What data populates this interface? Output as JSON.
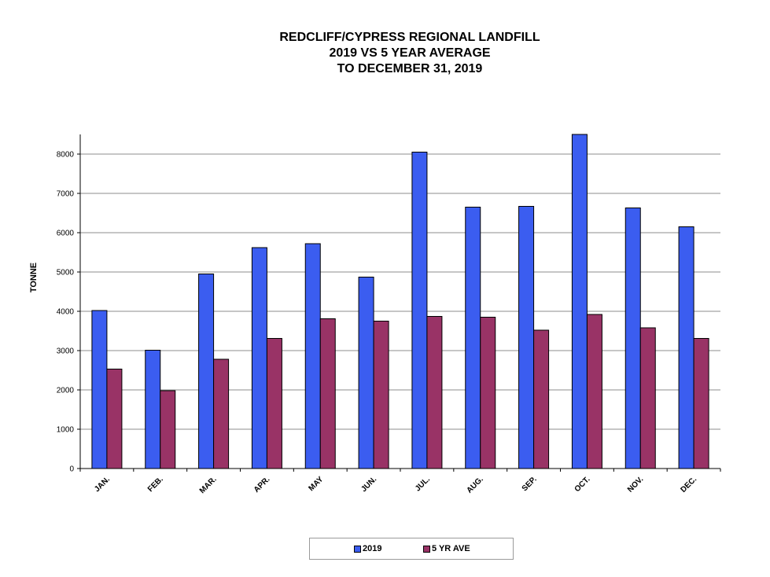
{
  "chart_data": {
    "type": "bar",
    "title": [
      "REDCLIFF/CYPRESS REGIONAL LANDFILL",
      "2019 VS 5 YEAR AVERAGE",
      "TO DECEMBER 31, 2019"
    ],
    "xlabel": "",
    "ylabel": "TONNE",
    "categories": [
      "JAN.",
      "FEB.",
      "MAR.",
      "APR.",
      "MAY",
      "JUN.",
      "JUL.",
      "AUG.",
      "SEP.",
      "OCT.",
      "NOV.",
      "DEC."
    ],
    "series": [
      {
        "name": "2019",
        "color": "#3b5df0",
        "values": [
          4020,
          3010,
          4950,
          5620,
          5720,
          4870,
          8050,
          6650,
          6670,
          8550,
          6630,
          6150
        ]
      },
      {
        "name": "5 YR AVE",
        "color": "#993366",
        "values": [
          2530,
          1980,
          2780,
          3310,
          3810,
          3750,
          3870,
          3850,
          3520,
          3920,
          3580,
          3310
        ]
      }
    ],
    "ylim": [
      0,
      8500
    ],
    "yticks": [
      "0",
      "1000",
      "2000",
      "3000",
      "4000",
      "5000",
      "6000",
      "7000",
      "8000"
    ],
    "grid": true,
    "legend_position": "bottom"
  }
}
